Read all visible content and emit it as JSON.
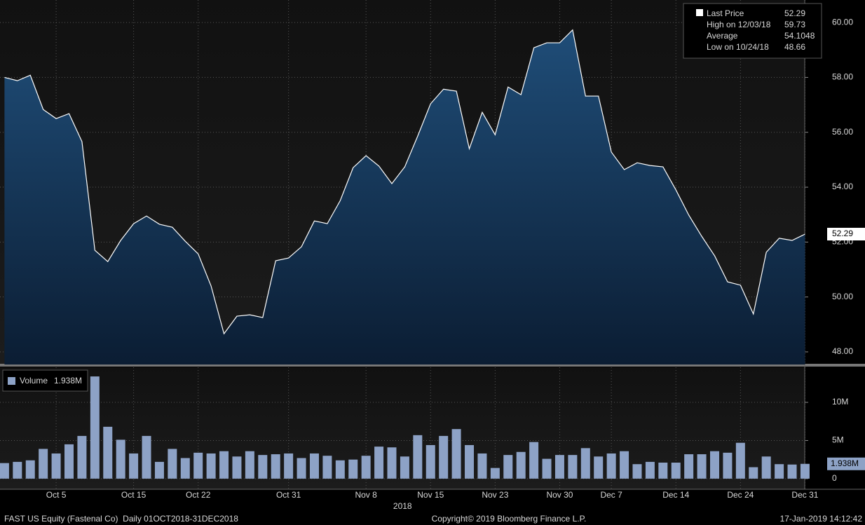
{
  "chart_data": [
    {
      "type": "area",
      "color": "#ffffff",
      "fill_top": "#1f4d78",
      "fill_bottom": "#0b1d33",
      "categories": [
        null,
        null,
        null,
        null,
        "Oct 5",
        null,
        null,
        null,
        null,
        null,
        "Oct 15",
        null,
        null,
        null,
        null,
        "Oct 22",
        null,
        null,
        null,
        null,
        null,
        null,
        "Oct 31",
        null,
        null,
        null,
        null,
        null,
        "Nov 8",
        null,
        null,
        null,
        null,
        "Nov 15",
        null,
        null,
        null,
        null,
        "Nov 23",
        null,
        null,
        null,
        null,
        "Nov 30",
        null,
        null,
        null,
        "Dec 7",
        null,
        null,
        null,
        null,
        "Dec 14",
        null,
        null,
        null,
        null,
        "Dec 24",
        null,
        null,
        null,
        null,
        "Dec 31"
      ],
      "series": [
        {
          "name": "Last Price",
          "color": "#ffffff",
          "values": [
            58.0,
            57.88,
            58.08,
            56.83,
            56.5,
            56.68,
            55.66,
            51.7,
            51.29,
            52.06,
            52.67,
            52.95,
            52.65,
            52.54,
            52.03,
            51.57,
            50.4,
            48.66,
            49.3,
            49.35,
            49.25,
            51.32,
            51.42,
            51.83,
            52.77,
            52.67,
            53.51,
            54.71,
            55.15,
            54.77,
            54.13,
            54.74,
            55.86,
            57.04,
            57.57,
            57.5,
            55.4,
            56.73,
            55.91,
            57.65,
            57.37,
            59.08,
            59.26,
            59.26,
            59.73,
            57.32,
            57.32,
            55.28,
            54.64,
            54.89,
            54.79,
            54.74,
            53.9,
            52.98,
            52.21,
            51.5,
            50.55,
            50.43,
            49.38,
            51.63,
            52.14,
            52.06,
            52.29
          ]
        }
      ],
      "last_value": 52.29,
      "legend": [
        {
          "name": "Last Price",
          "value": 52.29
        },
        {
          "name": "High on 12/03/18",
          "value": 59.73
        },
        {
          "name": "Average",
          "value": 54.1048
        },
        {
          "name": "Low on 10/24/18",
          "value": 48.66
        }
      ],
      "ylim": [
        47.54,
        60.82
      ],
      "yticks": [
        {
          "value": 48,
          "label": "48.00"
        },
        {
          "value": 50,
          "label": "50.00"
        },
        {
          "value": 52,
          "label": "52.00"
        },
        {
          "value": 54,
          "label": "54.00"
        },
        {
          "value": 56,
          "label": "56.00"
        },
        {
          "value": 58,
          "label": "58.00"
        },
        {
          "value": 60,
          "label": "60.00"
        }
      ],
      "grid": true,
      "year_label": "2018"
    },
    {
      "type": "bar",
      "color": "#8da2c6",
      "series": [
        {
          "name": "Volume",
          "color": "#8da2c6",
          "values": [
            2.04,
            2.2,
            2.4,
            3.9,
            3.3,
            4.5,
            5.6,
            13.4,
            6.8,
            5.1,
            3.3,
            5.6,
            2.2,
            3.9,
            2.7,
            3.4,
            3.3,
            3.6,
            2.9,
            3.6,
            3.1,
            3.2,
            3.3,
            2.7,
            3.3,
            3.0,
            2.4,
            2.5,
            3.0,
            4.2,
            4.1,
            2.9,
            5.7,
            4.4,
            5.6,
            6.5,
            4.4,
            3.3,
            1.4,
            3.1,
            3.5,
            4.8,
            2.6,
            3.1,
            3.1,
            4.0,
            2.9,
            3.3,
            3.6,
            1.9,
            2.2,
            2.1,
            2.1,
            3.2,
            3.2,
            3.6,
            3.4,
            4.7,
            1.5,
            2.9,
            1.9,
            1.85,
            1.938
          ]
        }
      ],
      "last_label": "1.938M",
      "ylim": [
        -1.3,
        14.6
      ],
      "yticks": [
        0,
        {
          "value": 5,
          "label": "5M"
        },
        {
          "value": 10,
          "label": "10M"
        }
      ],
      "grid": true
    }
  ],
  "footer": {
    "left": "FAST US Equity (Fastenal Co)  Daily 01OCT2018-31DEC2018",
    "center": "Copyright© 2019 Bloomberg Finance L.P.",
    "right": "17-Jan-2019 14:12:42"
  }
}
